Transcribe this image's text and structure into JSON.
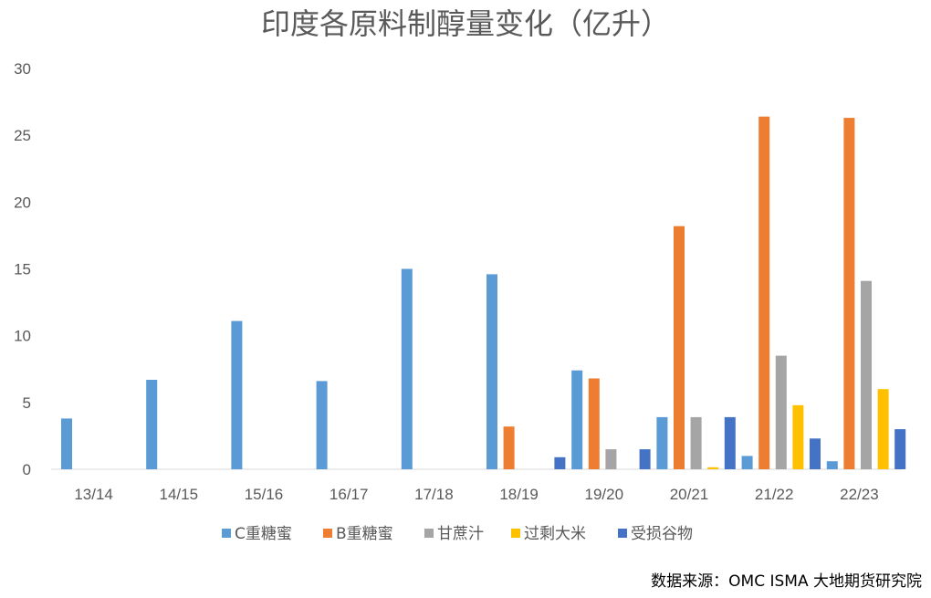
{
  "chart_data": {
    "type": "bar",
    "title": "印度各原料制醇量变化（亿升）",
    "xlabel": "",
    "ylabel": "",
    "ylim": [
      0,
      30
    ],
    "yticks": [
      "0",
      "5",
      "10",
      "15",
      "20",
      "25",
      "30"
    ],
    "grid": false,
    "legend_position": "bottom",
    "categories": [
      "13/14",
      "14/15",
      "15/16",
      "16/17",
      "17/18",
      "18/19",
      "19/20",
      "20/21",
      "21/22",
      "22/23"
    ],
    "series": [
      {
        "name": "C重糖蜜",
        "color": "#5B9BD5",
        "values": [
          3.8,
          6.7,
          11.1,
          6.6,
          15.0,
          14.6,
          7.4,
          3.9,
          1.0,
          0.6
        ]
      },
      {
        "name": "B重糖蜜",
        "color": "#ED7D31",
        "values": [
          0,
          0,
          0,
          0,
          0,
          3.2,
          6.8,
          18.2,
          26.4,
          26.3
        ]
      },
      {
        "name": "甘蔗汁",
        "color": "#A5A5A5",
        "values": [
          0,
          0,
          0,
          0,
          0,
          0,
          1.5,
          3.9,
          8.5,
          14.1
        ]
      },
      {
        "name": "过剩大米",
        "color": "#FFC000",
        "values": [
          0,
          0,
          0,
          0,
          0,
          0,
          0,
          0.15,
          4.8,
          6.0
        ]
      },
      {
        "name": "受损谷物",
        "color": "#4472C4",
        "values": [
          0,
          0,
          0,
          0,
          0,
          0.9,
          1.5,
          3.9,
          2.3,
          3.0
        ]
      }
    ]
  },
  "source_note": "数据来源：OMC ISMA 大地期货研究院"
}
